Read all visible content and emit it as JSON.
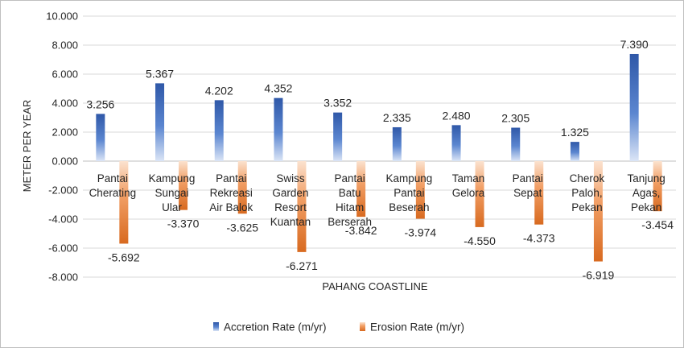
{
  "chart_data": {
    "type": "bar",
    "title": "",
    "xlabel": "PAHANG COASTLINE",
    "ylabel": "METER PER YEAR",
    "ylim": [
      -8,
      10
    ],
    "yticks": [
      "10.000",
      "8.000",
      "6.000",
      "4.000",
      "2.000",
      "0.000",
      "-2.000",
      "-4.000",
      "-6.000",
      "-8.000"
    ],
    "grid": true,
    "legend_position": "bottom",
    "categories": [
      [
        "Pantai",
        "Cherating"
      ],
      [
        "Kampung",
        "Sungai",
        "Ular"
      ],
      [
        "Pantai",
        "Rekreasi",
        "Air Balok"
      ],
      [
        "Swiss",
        "Garden",
        "Resort",
        "Kuantan"
      ],
      [
        "Pantai",
        "Batu",
        "Hitam",
        "Berserah"
      ],
      [
        "Kampung",
        "Pantai",
        "Beserah"
      ],
      [
        "Taman",
        "Gelora"
      ],
      [
        "Pantai",
        "Sepat"
      ],
      [
        "Cherok",
        "Paloh,",
        "Pekan"
      ],
      [
        "Tanjung",
        "Agas,",
        "Pekan"
      ]
    ],
    "series": [
      {
        "name": "Accretion Rate (m/yr)",
        "color": "#4472c4",
        "values": [
          3.256,
          5.367,
          4.202,
          4.352,
          3.352,
          2.335,
          2.48,
          2.305,
          1.325,
          7.39
        ],
        "labels": [
          "3.256",
          "5.367",
          "4.202",
          "4.352",
          "3.352",
          "2.335",
          "2.480",
          "2.305",
          "1.325",
          "7.390"
        ]
      },
      {
        "name": "Erosion Rate (m/yr)",
        "color": "#ed7d31",
        "values": [
          -5.692,
          -3.37,
          -3.625,
          -6.271,
          -3.842,
          -3.974,
          -4.55,
          -4.373,
          -6.919,
          -3.454
        ],
        "labels": [
          "-5.692",
          "-3.370",
          "-3.625",
          "-6.271",
          "-3.842",
          "-3.974",
          "-4.550",
          "-4.373",
          "-6.919",
          "-3.454"
        ]
      }
    ]
  }
}
